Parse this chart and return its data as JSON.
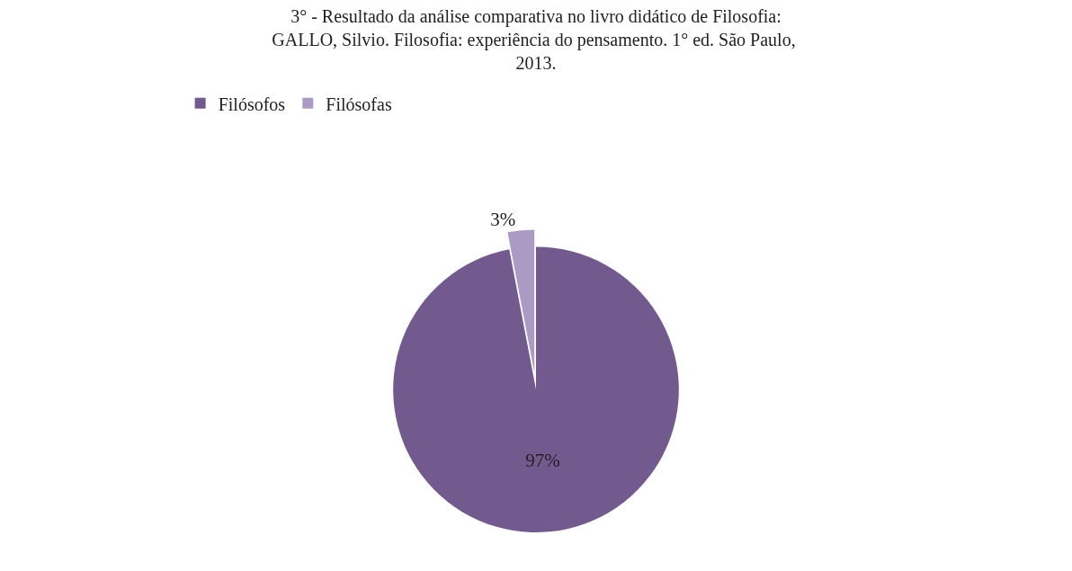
{
  "chart_data": {
    "type": "pie",
    "title": "3° - Resultado da análise comparativa no livro didático de Filosofia:\nGALLO, Silvio. Filosofia: experiência do pensamento. 1° ed. São Paulo, \n2013.",
    "categories": [
      "Filósofos",
      "Filósofas"
    ],
    "values": [
      97,
      3
    ],
    "value_labels": [
      "97%",
      "3%"
    ],
    "colors": [
      "#725a8e",
      "#ab9bc4"
    ],
    "legend": "top left"
  }
}
